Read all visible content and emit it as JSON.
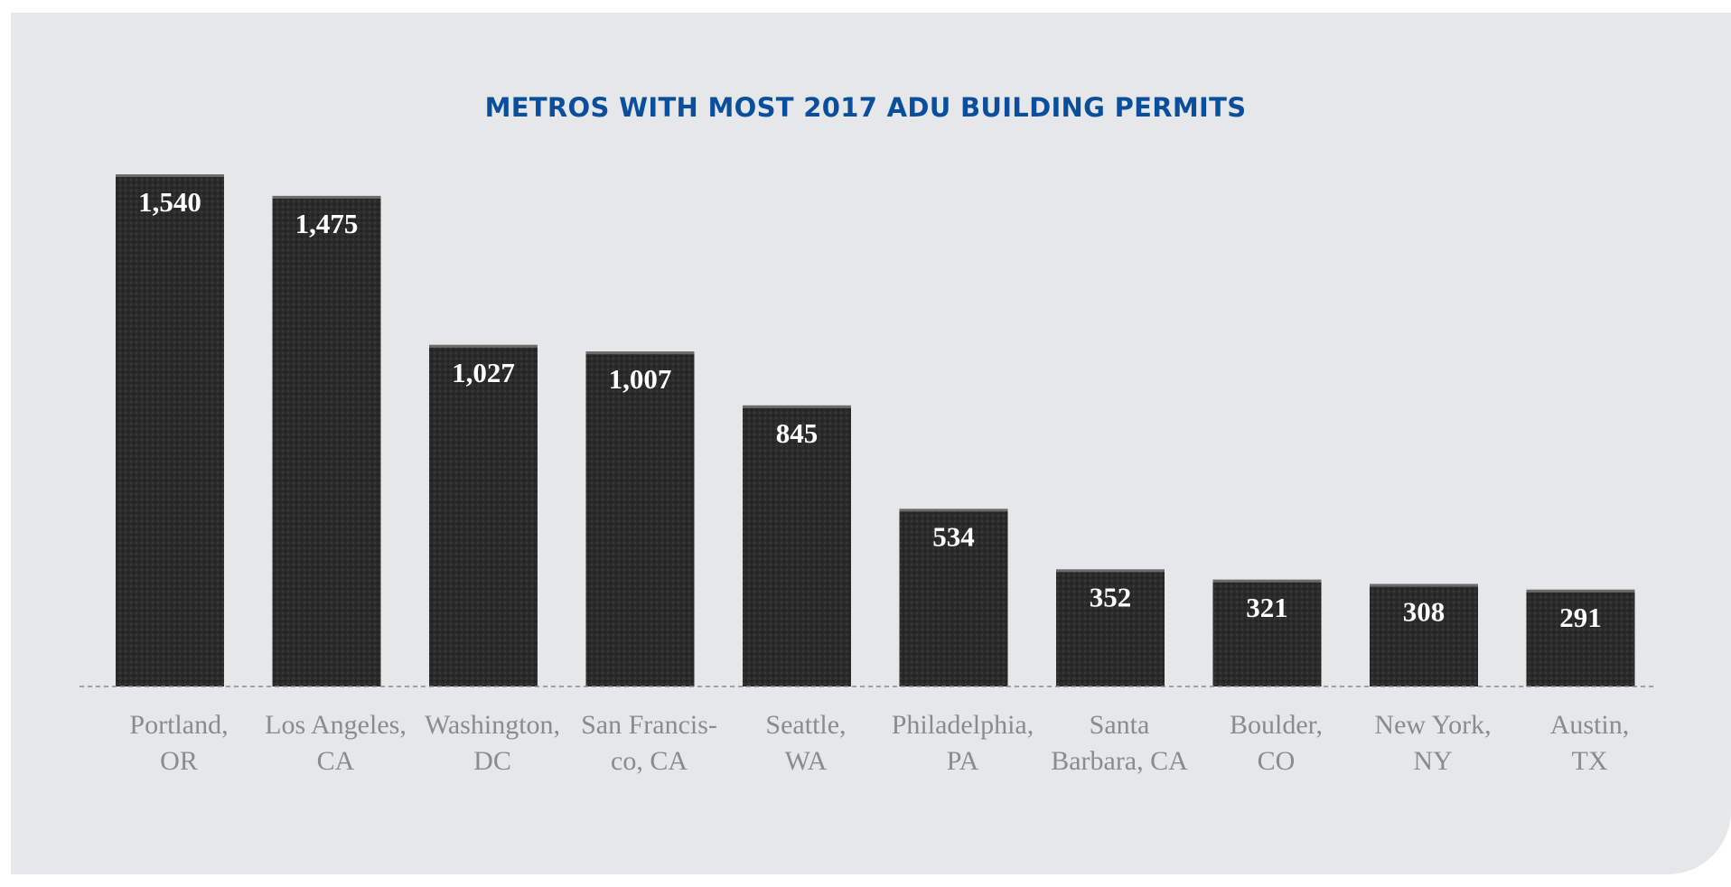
{
  "chart_data": {
    "type": "bar",
    "title": "METROS WITH MOST 2017 ADU BUILDING PERMITS",
    "xlabel": "",
    "ylabel": "",
    "categories": [
      [
        "Portland,",
        "OR"
      ],
      [
        "Los Angeles,",
        "CA"
      ],
      [
        "Washington,",
        "DC"
      ],
      [
        "San Francis-",
        "co, CA"
      ],
      [
        "Seattle,",
        "WA"
      ],
      [
        "Philadelphia,",
        "PA"
      ],
      [
        "Santa",
        "Barbara, CA"
      ],
      [
        "Boulder,",
        "CO"
      ],
      [
        "New York,",
        "NY"
      ],
      [
        "Austin,",
        "TX"
      ]
    ],
    "values": [
      1540,
      1475,
      1027,
      1007,
      845,
      534,
      352,
      321,
      308,
      291
    ],
    "value_labels": [
      "1,540",
      "1,475",
      "1,027",
      "1,007",
      "845",
      "534",
      "352",
      "321",
      "308",
      "291"
    ],
    "ylim": [
      0,
      1540
    ],
    "grid": false,
    "legend": "none",
    "colors": {
      "bar": "#2b2b2b",
      "title": "#0b4f9c",
      "background": "#e6e7e8",
      "tick_text": "#8a8b8d",
      "value_text": "#ffffff"
    }
  }
}
